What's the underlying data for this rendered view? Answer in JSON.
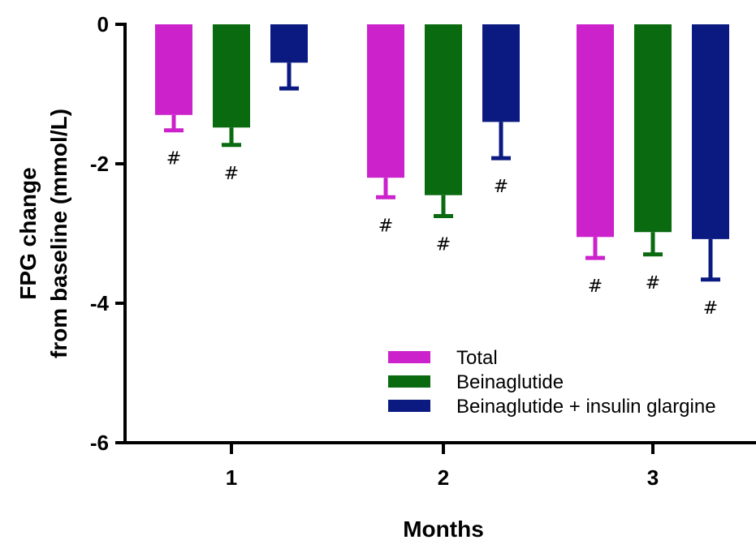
{
  "chart_data": {
    "type": "bar",
    "title": "",
    "xlabel": "Months",
    "ylabel_lines": [
      "FPG  change",
      "from baseline (mmol/L)"
    ],
    "categories": [
      "1",
      "2",
      "3"
    ],
    "ylim": [
      -6,
      0
    ],
    "yticks": [
      0,
      -2,
      -4,
      -6
    ],
    "ytick_labels": [
      "0",
      "-2",
      "-4",
      "-6"
    ],
    "grid": false,
    "legend_position": "bottom-right",
    "series": [
      {
        "name": "Total",
        "color": "#cc22cc",
        "values": [
          -1.3,
          -2.2,
          -3.05
        ],
        "error": [
          0.22,
          0.28,
          0.3
        ],
        "marker": [
          "#",
          "#",
          "#"
        ]
      },
      {
        "name": "Beinaglutide",
        "color": "#0a6a10",
        "values": [
          -1.48,
          -2.45,
          -2.98
        ],
        "error": [
          0.25,
          0.3,
          0.32
        ],
        "marker": [
          "#",
          "#",
          "#"
        ]
      },
      {
        "name": "Beinaglutide + insulin glargine",
        "color": "#0a1a80",
        "values": [
          -0.55,
          -1.4,
          -3.08
        ],
        "error": [
          0.37,
          0.52,
          0.58
        ],
        "marker": [
          "",
          "#",
          "#"
        ]
      }
    ]
  }
}
